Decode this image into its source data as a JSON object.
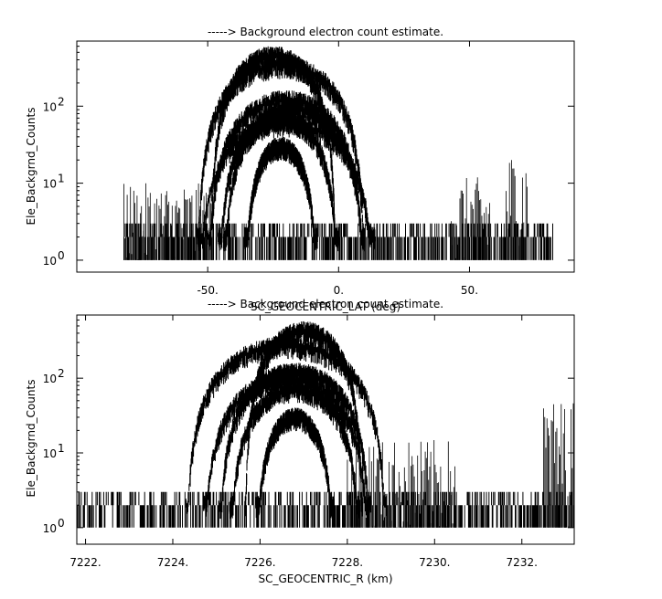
{
  "chart_data": [
    {
      "type": "line",
      "title": "-----> Background electron count estimate.",
      "xlabel": "SC_GEOCENTRIC_LAT (deg)",
      "ylabel": "Ele_Backgrnd_Counts",
      "xlim": [
        -100,
        90
      ],
      "ylim": [
        0.7,
        700
      ],
      "yscale": "log",
      "x_ticks": [
        -50,
        0,
        50
      ],
      "x_tick_labels": [
        "-50.",
        "0.",
        "50."
      ],
      "y_ticks": [
        1,
        10,
        100
      ],
      "y_tick_labels": [
        "10^0",
        "10^1",
        "10^2"
      ],
      "grid": false,
      "noise_floor": {
        "x_range": [
          -82,
          82
        ],
        "values": [
          1,
          2,
          3
        ]
      },
      "sparse_segments": [
        {
          "x_range": [
            -82,
            -48
          ],
          "peak": 10
        },
        {
          "x_range": [
            43,
            58
          ],
          "peak": 12
        },
        {
          "x_range": [
            64,
            72
          ],
          "peak": 25
        }
      ],
      "series": [
        {
          "center": -25,
          "peak": 450,
          "half_width": 24
        },
        {
          "center": -22,
          "peak": 340,
          "half_width": 32
        },
        {
          "center": -20,
          "peak": 120,
          "half_width": 30
        },
        {
          "center": -18,
          "peak": 90,
          "half_width": 28
        },
        {
          "center": -22,
          "peak": 70,
          "half_width": 22
        },
        {
          "center": -20,
          "peak": 60,
          "half_width": 34
        },
        {
          "center": -22,
          "peak": 30,
          "half_width": 14
        }
      ]
    },
    {
      "type": "line",
      "title": "-----> Background electron count estimate.",
      "xlabel": "SC_GEOCENTRIC_R (km)",
      "ylabel": "Ele_Backgrnd_Counts",
      "xlim": [
        7221.8,
        7233.2
      ],
      "ylim": [
        0.6,
        700
      ],
      "yscale": "log",
      "x_ticks": [
        7222,
        7224,
        7226,
        7228,
        7230,
        7232
      ],
      "x_tick_labels": [
        "7222.",
        "7224.",
        "7226.",
        "7228.",
        "7230.",
        "7232."
      ],
      "y_ticks": [
        1,
        10,
        100
      ],
      "y_tick_labels": [
        "10^0",
        "10^1",
        "10^2"
      ],
      "grid": false,
      "noise_floor": {
        "x_range": [
          7221.8,
          7233.2
        ],
        "values": [
          1,
          2,
          3
        ]
      },
      "sparse_segments": [
        {
          "x_range": [
            7228.0,
            7230.5
          ],
          "peak": 15
        },
        {
          "x_range": [
            7232.5,
            7233.2
          ],
          "peak": 50
        }
      ],
      "series": [
        {
          "center": 7227.0,
          "peak": 430,
          "half_width": 1.35
        },
        {
          "center": 7226.6,
          "peak": 270,
          "half_width": 2.3
        },
        {
          "center": 7226.8,
          "peak": 120,
          "half_width": 1.75
        },
        {
          "center": 7226.6,
          "peak": 95,
          "half_width": 1.9
        },
        {
          "center": 7226.8,
          "peak": 70,
          "half_width": 1.5
        },
        {
          "center": 7226.8,
          "peak": 30,
          "half_width": 0.9
        }
      ]
    }
  ]
}
